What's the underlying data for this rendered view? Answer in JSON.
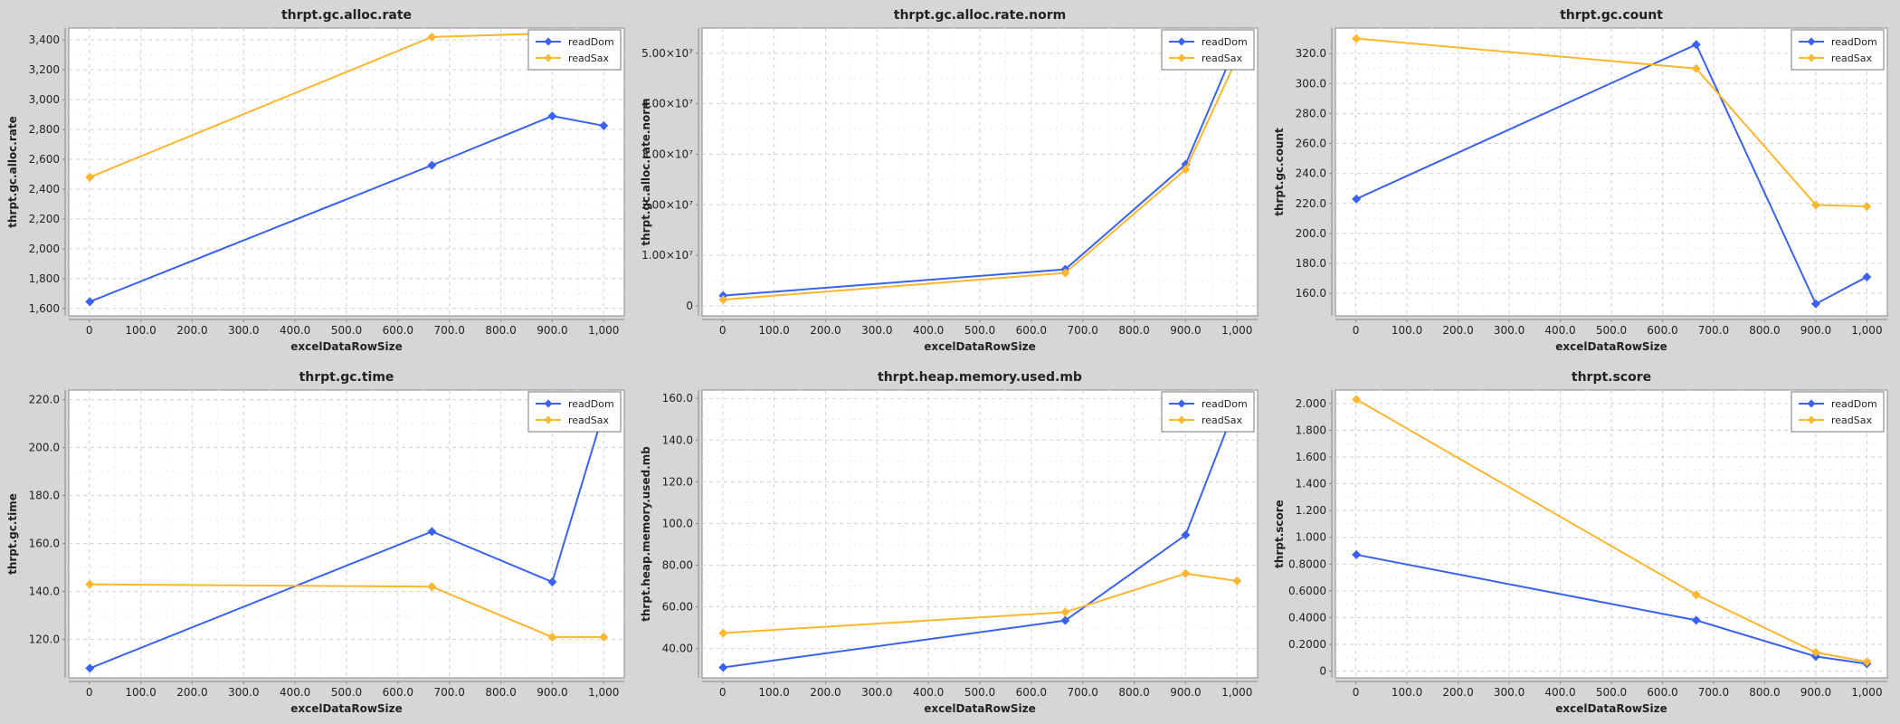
{
  "colors": {
    "readDom": "#3a62f0",
    "readSax": "#fcb62f",
    "plot_bg": "#ffffff",
    "page_bg": "#d6d6d6",
    "grid": "#d3d3d3"
  },
  "chart_data": [
    {
      "type": "line",
      "title": "thrpt.gc.alloc.rate",
      "xlabel": "excelDataRowSize",
      "ylabel": "thrpt.gc.alloc.rate",
      "xlim": [
        -40,
        1040
      ],
      "ylim": [
        1550,
        3480
      ],
      "xticks": [
        0,
        100,
        200,
        300,
        400,
        500,
        600,
        700,
        800,
        900,
        1000
      ],
      "xtick_labels": [
        "0",
        "100.0",
        "200.0",
        "300.0",
        "400.0",
        "500.0",
        "600.0",
        "700.0",
        "800.0",
        "900.0",
        "1,000"
      ],
      "yticks": [
        1600,
        1800,
        2000,
        2200,
        2400,
        2600,
        2800,
        3000,
        3200,
        3400
      ],
      "ytick_labels": [
        "1,600",
        "1,800",
        "2,000",
        "2,200",
        "2,400",
        "2,600",
        "2,800",
        "3,000",
        "3,200",
        "3,400"
      ],
      "grid": true,
      "legend": "top-right",
      "series": [
        {
          "name": "readDom",
          "x": [
            1,
            666,
            900,
            1000
          ],
          "y": [
            1645,
            2560,
            2890,
            2825
          ]
        },
        {
          "name": "readSax",
          "x": [
            1,
            666,
            900,
            1000
          ],
          "y": [
            2480,
            3420,
            3445,
            3445
          ]
        }
      ]
    },
    {
      "type": "line",
      "title": "thrpt.gc.alloc.rate.norm",
      "xlabel": "excelDataRowSize",
      "ylabel": "thrpt.gc.alloc.rate.norm",
      "xlim": [
        -40,
        1040
      ],
      "ylim": [
        -2000000,
        55000000
      ],
      "xticks": [
        0,
        100,
        200,
        300,
        400,
        500,
        600,
        700,
        800,
        900,
        1000
      ],
      "xtick_labels": [
        "0",
        "100.0",
        "200.0",
        "300.0",
        "400.0",
        "500.0",
        "600.0",
        "700.0",
        "800.0",
        "900.0",
        "1,000"
      ],
      "yticks": [
        0,
        10000000,
        20000000,
        30000000,
        40000000,
        50000000
      ],
      "ytick_labels": [
        "0",
        "1.00×10⁷",
        "2.00×10⁷",
        "3.00×10⁷",
        "4.00×10⁷",
        "5.00×10⁷"
      ],
      "grid": true,
      "legend": "top-right",
      "series": [
        {
          "name": "readDom",
          "x": [
            1,
            666,
            900,
            1000
          ],
          "y": [
            2000000,
            7200000,
            28000000,
            52000000
          ]
        },
        {
          "name": "readSax",
          "x": [
            1,
            666,
            900,
            1000
          ],
          "y": [
            1200000,
            6500000,
            27000000,
            49000000
          ]
        }
      ]
    },
    {
      "type": "line",
      "title": "thrpt.gc.count",
      "xlabel": "excelDataRowSize",
      "ylabel": "thrpt.gc.count",
      "xlim": [
        -40,
        1040
      ],
      "ylim": [
        145,
        337
      ],
      "xticks": [
        0,
        100,
        200,
        300,
        400,
        500,
        600,
        700,
        800,
        900,
        1000
      ],
      "xtick_labels": [
        "0",
        "100.0",
        "200.0",
        "300.0",
        "400.0",
        "500.0",
        "600.0",
        "700.0",
        "800.0",
        "900.0",
        "1,000"
      ],
      "yticks": [
        160,
        180,
        200,
        220,
        240,
        260,
        280,
        300,
        320
      ],
      "ytick_labels": [
        "160.0",
        "180.0",
        "200.0",
        "220.0",
        "240.0",
        "260.0",
        "280.0",
        "300.0",
        "320.0"
      ],
      "grid": true,
      "legend": "top-right",
      "series": [
        {
          "name": "readDom",
          "x": [
            1,
            666,
            900,
            1000
          ],
          "y": [
            223,
            326,
            153,
            171
          ]
        },
        {
          "name": "readSax",
          "x": [
            1,
            666,
            900,
            1000
          ],
          "y": [
            330,
            310,
            219,
            218
          ]
        }
      ]
    },
    {
      "type": "line",
      "title": "thrpt.gc.time",
      "xlabel": "excelDataRowSize",
      "ylabel": "thrpt.gc.time",
      "xlim": [
        -40,
        1040
      ],
      "ylim": [
        104,
        224
      ],
      "xticks": [
        0,
        100,
        200,
        300,
        400,
        500,
        600,
        700,
        800,
        900,
        1000
      ],
      "xtick_labels": [
        "0",
        "100.0",
        "200.0",
        "300.0",
        "400.0",
        "500.0",
        "600.0",
        "700.0",
        "800.0",
        "900.0",
        "1,000"
      ],
      "yticks": [
        120,
        140,
        160,
        180,
        200,
        220
      ],
      "ytick_labels": [
        "120.0",
        "140.0",
        "160.0",
        "180.0",
        "200.0",
        "220.0"
      ],
      "grid": true,
      "legend": "top-right",
      "series": [
        {
          "name": "readDom",
          "x": [
            1,
            666,
            900,
            1000
          ],
          "y": [
            108,
            165,
            144,
            215
          ]
        },
        {
          "name": "readSax",
          "x": [
            1,
            666,
            900,
            1000
          ],
          "y": [
            143,
            142,
            121,
            121
          ]
        }
      ]
    },
    {
      "type": "line",
      "title": "thrpt.heap.memory.used.mb",
      "xlabel": "excelDataRowSize",
      "ylabel": "thrpt.heap.memory.used.mb",
      "xlim": [
        -40,
        1040
      ],
      "ylim": [
        26,
        164
      ],
      "xticks": [
        0,
        100,
        200,
        300,
        400,
        500,
        600,
        700,
        800,
        900,
        1000
      ],
      "xtick_labels": [
        "0",
        "100.0",
        "200.0",
        "300.0",
        "400.0",
        "500.0",
        "600.0",
        "700.0",
        "800.0",
        "900.0",
        "1,000"
      ],
      "yticks": [
        40,
        60,
        80,
        100,
        120,
        140,
        160
      ],
      "ytick_labels": [
        "40.00",
        "60.00",
        "80.00",
        "100.0",
        "120.0",
        "140.0",
        "160.0"
      ],
      "grid": true,
      "legend": "top-right",
      "series": [
        {
          "name": "readDom",
          "x": [
            1,
            666,
            900,
            1000
          ],
          "y": [
            31,
            53.5,
            94.5,
            158
          ]
        },
        {
          "name": "readSax",
          "x": [
            1,
            666,
            900,
            1000
          ],
          "y": [
            47.5,
            57.5,
            76,
            72.5
          ]
        }
      ]
    },
    {
      "type": "line",
      "title": "thrpt.score",
      "xlabel": "excelDataRowSize",
      "ylabel": "thrpt.score",
      "xlim": [
        -40,
        1040
      ],
      "ylim": [
        -0.05,
        2.1
      ],
      "xticks": [
        0,
        100,
        200,
        300,
        400,
        500,
        600,
        700,
        800,
        900,
        1000
      ],
      "xtick_labels": [
        "0",
        "100.0",
        "200.0",
        "300.0",
        "400.0",
        "500.0",
        "600.0",
        "700.0",
        "800.0",
        "900.0",
        "1,000"
      ],
      "yticks": [
        0,
        0.2,
        0.4,
        0.6,
        0.8,
        1.0,
        1.2,
        1.4,
        1.6,
        1.8,
        2.0
      ],
      "ytick_labels": [
        "0",
        "0.2000",
        "0.4000",
        "0.6000",
        "0.8000",
        "1.000",
        "1.200",
        "1.400",
        "1.600",
        "1.800",
        "2.000"
      ],
      "grid": true,
      "legend": "top-right",
      "series": [
        {
          "name": "readDom",
          "x": [
            1,
            666,
            900,
            1000
          ],
          "y": [
            0.87,
            0.38,
            0.11,
            0.055
          ]
        },
        {
          "name": "readSax",
          "x": [
            1,
            666,
            900,
            1000
          ],
          "y": [
            2.03,
            0.57,
            0.14,
            0.07
          ]
        }
      ]
    }
  ]
}
